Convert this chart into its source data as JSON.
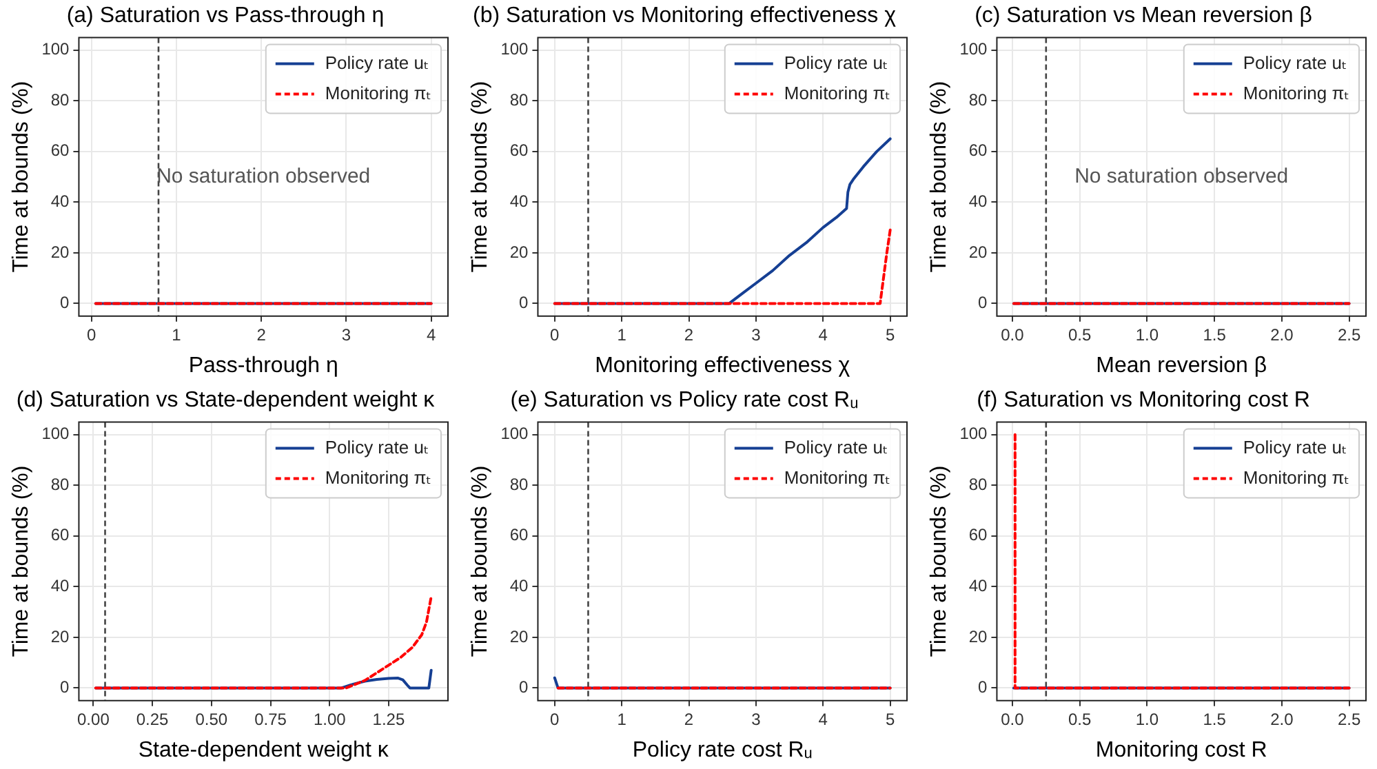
{
  "chart_data": [
    {
      "type": "line",
      "title": "(a) Saturation vs Pass-through η",
      "xlabel": "Pass-through η",
      "ylabel": "Time at bounds (%)",
      "xlim": [
        -0.1475,
        4.1975
      ],
      "xticks": [
        0,
        1,
        2,
        3,
        4
      ],
      "ylim": [
        -5,
        105
      ],
      "yticks": [
        0,
        20,
        40,
        60,
        80,
        100
      ],
      "grid": true,
      "legend": "top right",
      "annotations": [
        "No saturation observed"
      ],
      "ref_lines": [
        {
          "axis": "x",
          "value": 0.79,
          "color": "#444444",
          "line_style": "dashed"
        }
      ],
      "series": [
        {
          "name": "Policy rate uₜ",
          "color": "#153f93",
          "line_style": "solid",
          "x": [
            0.05,
            4
          ],
          "values": [
            0,
            0
          ]
        },
        {
          "name": "Monitoring πₜ",
          "color": "#ff0000",
          "line_style": "dashed",
          "x": [
            0.05,
            4
          ],
          "values": [
            0,
            0
          ]
        }
      ]
    },
    {
      "type": "line",
      "title": "(b) Saturation vs Monitoring effectiveness χ",
      "xlabel": "Monitoring effectiveness χ",
      "ylabel": "Time at bounds (%)",
      "xlim": [
        -0.25,
        5.25
      ],
      "xticks": [
        0,
        1,
        2,
        3,
        4,
        5
      ],
      "ylim": [
        -5,
        105
      ],
      "yticks": [
        0,
        20,
        40,
        60,
        80,
        100
      ],
      "grid": true,
      "legend": "top right",
      "ref_lines": [
        {
          "axis": "x",
          "value": 0.5,
          "color": "#444444",
          "line_style": "dashed"
        }
      ],
      "series": [
        {
          "name": "Policy rate uₜ",
          "color": "#153f93",
          "line_style": "solid",
          "x": [
            0,
            2.6,
            2.8,
            3,
            3.25,
            3.5,
            3.75,
            4,
            4.2,
            4.35,
            4.37,
            4.4,
            4.45,
            4.6,
            4.8,
            5
          ],
          "values": [
            0,
            0,
            4,
            8,
            13,
            19,
            24,
            30,
            34,
            37.5,
            44,
            47,
            49,
            54,
            60,
            65
          ]
        },
        {
          "name": "Monitoring πₜ",
          "color": "#ff0000",
          "line_style": "dashed",
          "x": [
            0,
            4.85,
            4.9,
            4.95,
            5
          ],
          "values": [
            0,
            0,
            10,
            20,
            29
          ]
        }
      ]
    },
    {
      "type": "line",
      "title": "(c) Saturation vs Mean reversion β",
      "xlabel": "Mean reversion β",
      "ylabel": "Time at bounds (%)",
      "xlim": [
        -0.115,
        2.625
      ],
      "xticks": [
        {
          "value": 0,
          "label": "0.0"
        },
        0.5,
        {
          "value": 1,
          "label": "1.0"
        },
        1.5,
        {
          "value": 2,
          "label": "2.0"
        },
        2.5
      ],
      "ylim": [
        -5,
        105
      ],
      "yticks": [
        0,
        20,
        40,
        60,
        80,
        100
      ],
      "grid": true,
      "legend": "top right",
      "annotations": [
        "No saturation observed"
      ],
      "ref_lines": [
        {
          "axis": "x",
          "value": 0.25,
          "color": "#444444",
          "line_style": "dashed"
        }
      ],
      "series": [
        {
          "name": "Policy rate uₜ",
          "color": "#153f93",
          "line_style": "solid",
          "x": [
            0.01,
            2.5
          ],
          "values": [
            0,
            0
          ]
        },
        {
          "name": "Monitoring πₜ",
          "color": "#ff0000",
          "line_style": "dashed",
          "x": [
            0.01,
            2.5
          ],
          "values": [
            0,
            0
          ]
        }
      ]
    },
    {
      "type": "line",
      "title": "(d) Saturation vs State-dependent weight κ",
      "xlabel": "State-dependent weight κ",
      "ylabel": "Time at bounds (%)",
      "xlim": [
        -0.061,
        1.501
      ],
      "xticks": [
        {
          "value": 0,
          "label": "0.00"
        },
        0.25,
        {
          "value": 0.5,
          "label": "0.50"
        },
        0.75,
        {
          "value": 1,
          "label": "1.00"
        },
        1.25
      ],
      "ylim": [
        -5,
        105
      ],
      "yticks": [
        0,
        20,
        40,
        60,
        80,
        100
      ],
      "grid": true,
      "legend": "top right",
      "ref_lines": [
        {
          "axis": "x",
          "value": 0.05,
          "color": "#444444",
          "line_style": "dashed"
        }
      ],
      "series": [
        {
          "name": "Policy rate uₜ",
          "color": "#153f93",
          "line_style": "solid",
          "x": [
            0.01,
            1.05,
            1.1,
            1.15,
            1.2,
            1.25,
            1.29,
            1.31,
            1.33,
            1.34,
            1.42,
            1.43
          ],
          "values": [
            0,
            0,
            1.5,
            2.7,
            3.4,
            3.8,
            3.9,
            3.2,
            1,
            0,
            0,
            7
          ]
        },
        {
          "name": "Monitoring πₜ",
          "color": "#ff0000",
          "line_style": "dashed",
          "x": [
            0.01,
            1.07,
            1.15,
            1.2,
            1.25,
            1.3,
            1.35,
            1.39,
            1.41,
            1.43
          ],
          "values": [
            0,
            0,
            3,
            6,
            9,
            12,
            16,
            21,
            26,
            36
          ]
        }
      ]
    },
    {
      "type": "line",
      "title": "(e) Saturation vs Policy rate cost Rᵤ",
      "xlabel": "Policy rate cost Rᵤ",
      "ylabel": "Time at bounds (%)",
      "xlim": [
        -0.25,
        5.25
      ],
      "xticks": [
        0,
        1,
        2,
        3,
        4,
        5
      ],
      "ylim": [
        -5,
        105
      ],
      "yticks": [
        0,
        20,
        40,
        60,
        80,
        100
      ],
      "grid": true,
      "legend": "top right",
      "ref_lines": [
        {
          "axis": "x",
          "value": 0.5,
          "color": "#444444",
          "line_style": "dashed"
        }
      ],
      "series": [
        {
          "name": "Policy rate uₜ",
          "color": "#153f93",
          "line_style": "solid",
          "x": [
            0,
            0.05,
            5
          ],
          "values": [
            4,
            0,
            0
          ]
        },
        {
          "name": "Monitoring πₜ",
          "color": "#ff0000",
          "line_style": "dashed",
          "x": [
            0.05,
            5
          ],
          "values": [
            0,
            0
          ]
        }
      ]
    },
    {
      "type": "line",
      "title": "(f) Saturation vs Monitoring cost R",
      "xlabel": "Monitoring cost R",
      "ylabel": "Time at bounds (%)",
      "xlim": [
        -0.115,
        2.625
      ],
      "xticks": [
        {
          "value": 0,
          "label": "0.0"
        },
        0.5,
        {
          "value": 1,
          "label": "1.0"
        },
        1.5,
        {
          "value": 2,
          "label": "2.0"
        },
        2.5
      ],
      "ylim": [
        -5,
        105
      ],
      "yticks": [
        0,
        20,
        40,
        60,
        80,
        100
      ],
      "grid": true,
      "legend": "top right",
      "ref_lines": [
        {
          "axis": "x",
          "value": 0.25,
          "color": "#444444",
          "line_style": "dashed"
        }
      ],
      "series": [
        {
          "name": "Policy rate uₜ",
          "color": "#153f93",
          "line_style": "solid",
          "x": [
            0.01,
            2.5
          ],
          "values": [
            0,
            0
          ]
        },
        {
          "name": "Monitoring πₜ",
          "color": "#ff0000",
          "line_style": "dashed",
          "x": [
            0.02,
            0.02,
            2.5
          ],
          "values": [
            100,
            0,
            0
          ]
        }
      ]
    }
  ]
}
